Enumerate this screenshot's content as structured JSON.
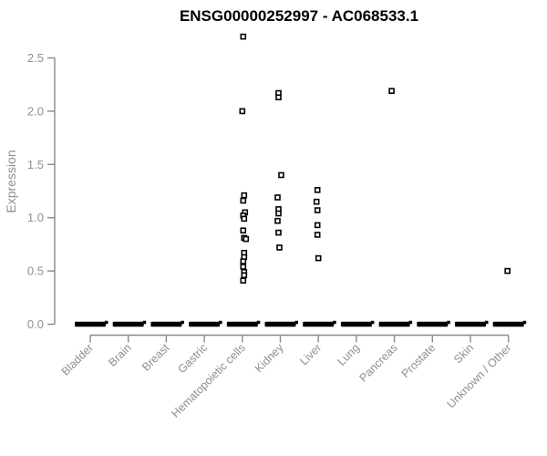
{
  "chart_data": {
    "type": "scatter",
    "title": "ENSG00000252997 - AC068533.1",
    "ylabel": "Expression",
    "xlabel": "",
    "ylim": [
      0,
      2.75
    ],
    "grid": false,
    "legend": "none",
    "ytick_labels": [
      "0.0",
      "0.5",
      "1.0",
      "1.5",
      "2.0",
      "2.5"
    ],
    "ytick_values": [
      0.0,
      0.5,
      1.0,
      1.5,
      2.0,
      2.5
    ],
    "categories": [
      "Bladder",
      "Brain",
      "Breast",
      "Gastric",
      "Hematopoietic cells",
      "Kidney",
      "Liver",
      "Lung",
      "Pancreas",
      "Prostate",
      "Skin",
      "Unknown / Other"
    ],
    "zero_baseline_note": "every category shows a dense cluster of samples at expression 0, drawn as a thick black dash",
    "series": [
      {
        "category": "Bladder",
        "values": [],
        "dx": []
      },
      {
        "category": "Brain",
        "values": [],
        "dx": []
      },
      {
        "category": "Breast",
        "values": [],
        "dx": []
      },
      {
        "category": "Gastric",
        "values": [],
        "dx": []
      },
      {
        "category": "Hematopoietic cells",
        "values": [
          2.7,
          2.0,
          1.21,
          1.16,
          1.05,
          1.02,
          0.99,
          0.88,
          0.81,
          0.8,
          0.67,
          0.63,
          0.59,
          0.54,
          0.49,
          0.46,
          0.41
        ],
        "dx": [
          1,
          0,
          2,
          1,
          3,
          1,
          2,
          1,
          2,
          4,
          2,
          2,
          1,
          1,
          2,
          2,
          1
        ]
      },
      {
        "category": "Kidney",
        "values": [
          2.17,
          2.13,
          1.4,
          1.19,
          1.08,
          1.04,
          0.97,
          0.86,
          0.72
        ],
        "dx": [
          -2,
          -2,
          1,
          -3,
          -2,
          -2,
          -3,
          -2,
          -1
        ]
      },
      {
        "category": "Liver",
        "values": [
          1.26,
          1.15,
          1.07,
          0.93,
          0.84,
          0.62
        ],
        "dx": [
          -1,
          -2,
          -1,
          -1,
          -1,
          0
        ]
      },
      {
        "category": "Lung",
        "values": [],
        "dx": []
      },
      {
        "category": "Pancreas",
        "values": [
          2.19
        ],
        "dx": [
          -3
        ]
      },
      {
        "category": "Prostate",
        "values": [],
        "dx": []
      },
      {
        "category": "Skin",
        "values": [],
        "dx": []
      },
      {
        "category": "Unknown / Other",
        "values": [
          0.5
        ],
        "dx": [
          -1
        ]
      }
    ],
    "colors": {
      "point_stroke": "#000000",
      "point_fill": "#ffffff",
      "zero_dash": "#000000",
      "axis_line": "#8a8a8a",
      "axis_text": "#8f8f8f",
      "title": "#000000",
      "background": "#ffffff"
    }
  }
}
